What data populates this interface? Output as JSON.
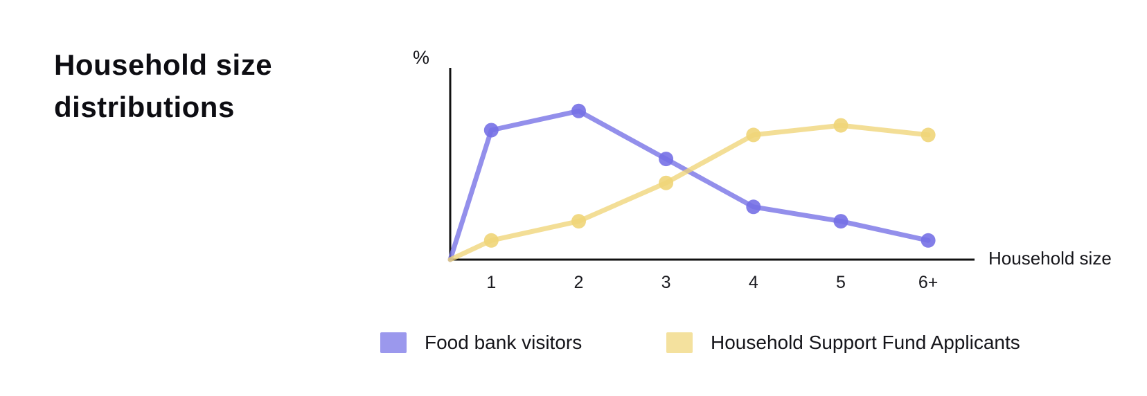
{
  "title": "Household size distributions",
  "chart_data": {
    "type": "line",
    "title": "Household size distributions",
    "categories": [
      "1",
      "2",
      "3",
      "4",
      "5",
      "6+"
    ],
    "x_axis_label": "Household size",
    "y_axis_label": "%",
    "y_tick_labels": [],
    "ylim": [
      0,
      40
    ],
    "grid": false,
    "legend_position": "bottom",
    "series": [
      {
        "name": "Food bank visitors",
        "color": "#7570e6",
        "values": [
          27,
          31,
          21,
          11,
          8,
          4
        ]
      },
      {
        "name": "Household Support Fund Applicants",
        "color": "#f0d578",
        "values": [
          4,
          8,
          16,
          26,
          28,
          26
        ]
      }
    ]
  }
}
